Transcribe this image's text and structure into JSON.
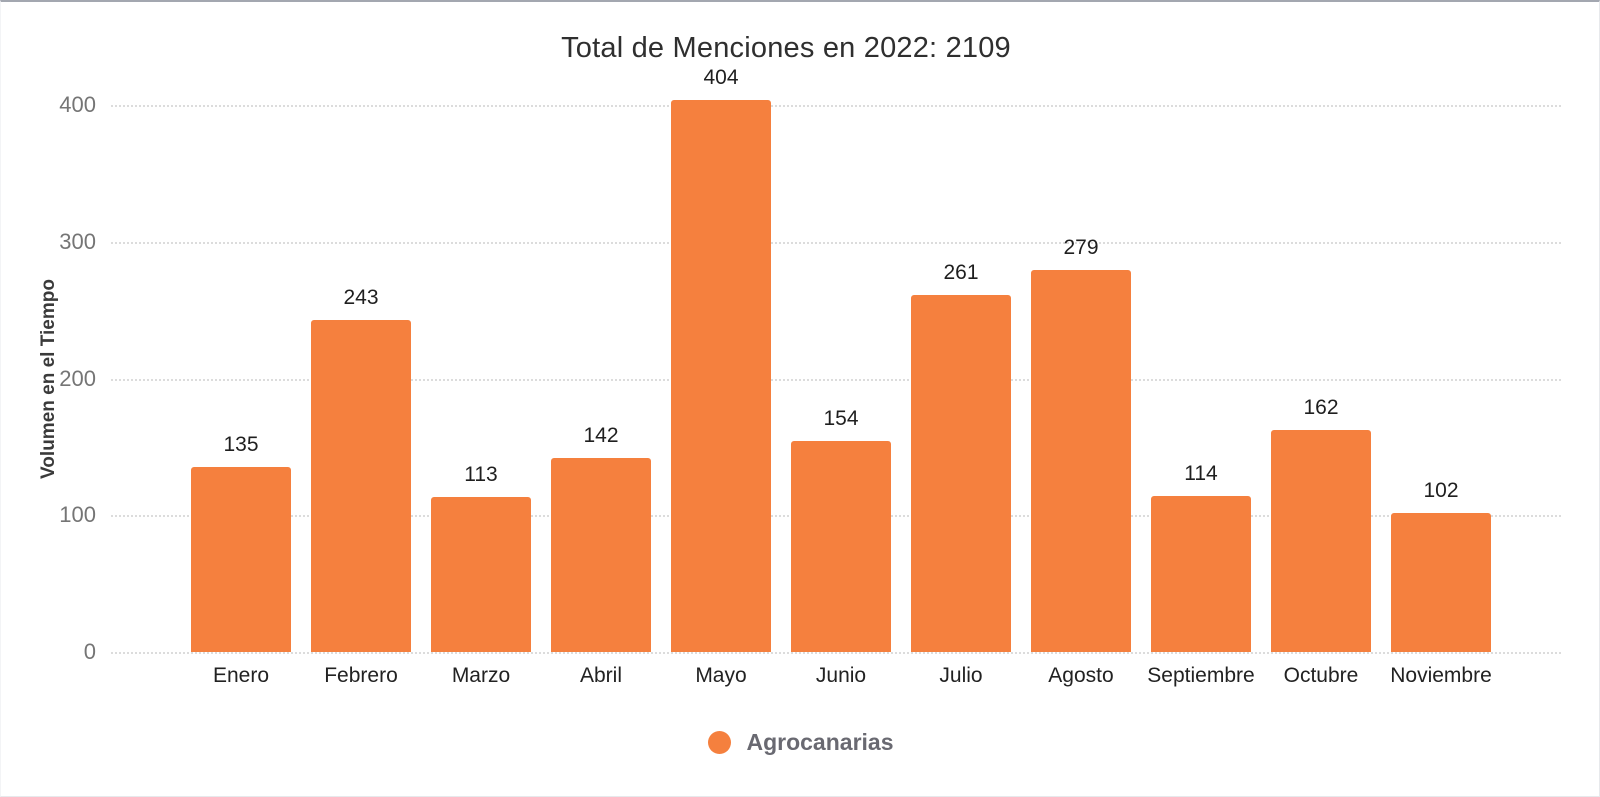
{
  "chart_data": {
    "type": "bar",
    "title": "Total de Menciones en 2022: 2109",
    "xlabel": "",
    "ylabel": "Volumen en el Tiempo",
    "categories": [
      "Enero",
      "Febrero",
      "Marzo",
      "Abril",
      "Mayo",
      "Junio",
      "Julio",
      "Agosto",
      "Septiembre",
      "Octubre",
      "Noviembre"
    ],
    "values": [
      135,
      243,
      113,
      142,
      404,
      154,
      261,
      279,
      114,
      162,
      102
    ],
    "total_annotation": "2109",
    "yticks": [
      0,
      100,
      200,
      300,
      400
    ],
    "ylim": [
      0,
      400
    ],
    "grid": "horizontal-dotted",
    "grid_color": "#dcdcdc",
    "bar_color": "#F5803E",
    "value_labels": true,
    "legend_position": "bottom",
    "legend": [
      {
        "label": "Agrocanarias",
        "color": "#F5803E"
      }
    ]
  },
  "colors": {
    "background": "#ffffff",
    "accent": "#F5803E",
    "title_text": "#2f2f2f",
    "tick_text": "#757575",
    "legend_text": "#696971",
    "top_border": "#a3a7b0"
  }
}
